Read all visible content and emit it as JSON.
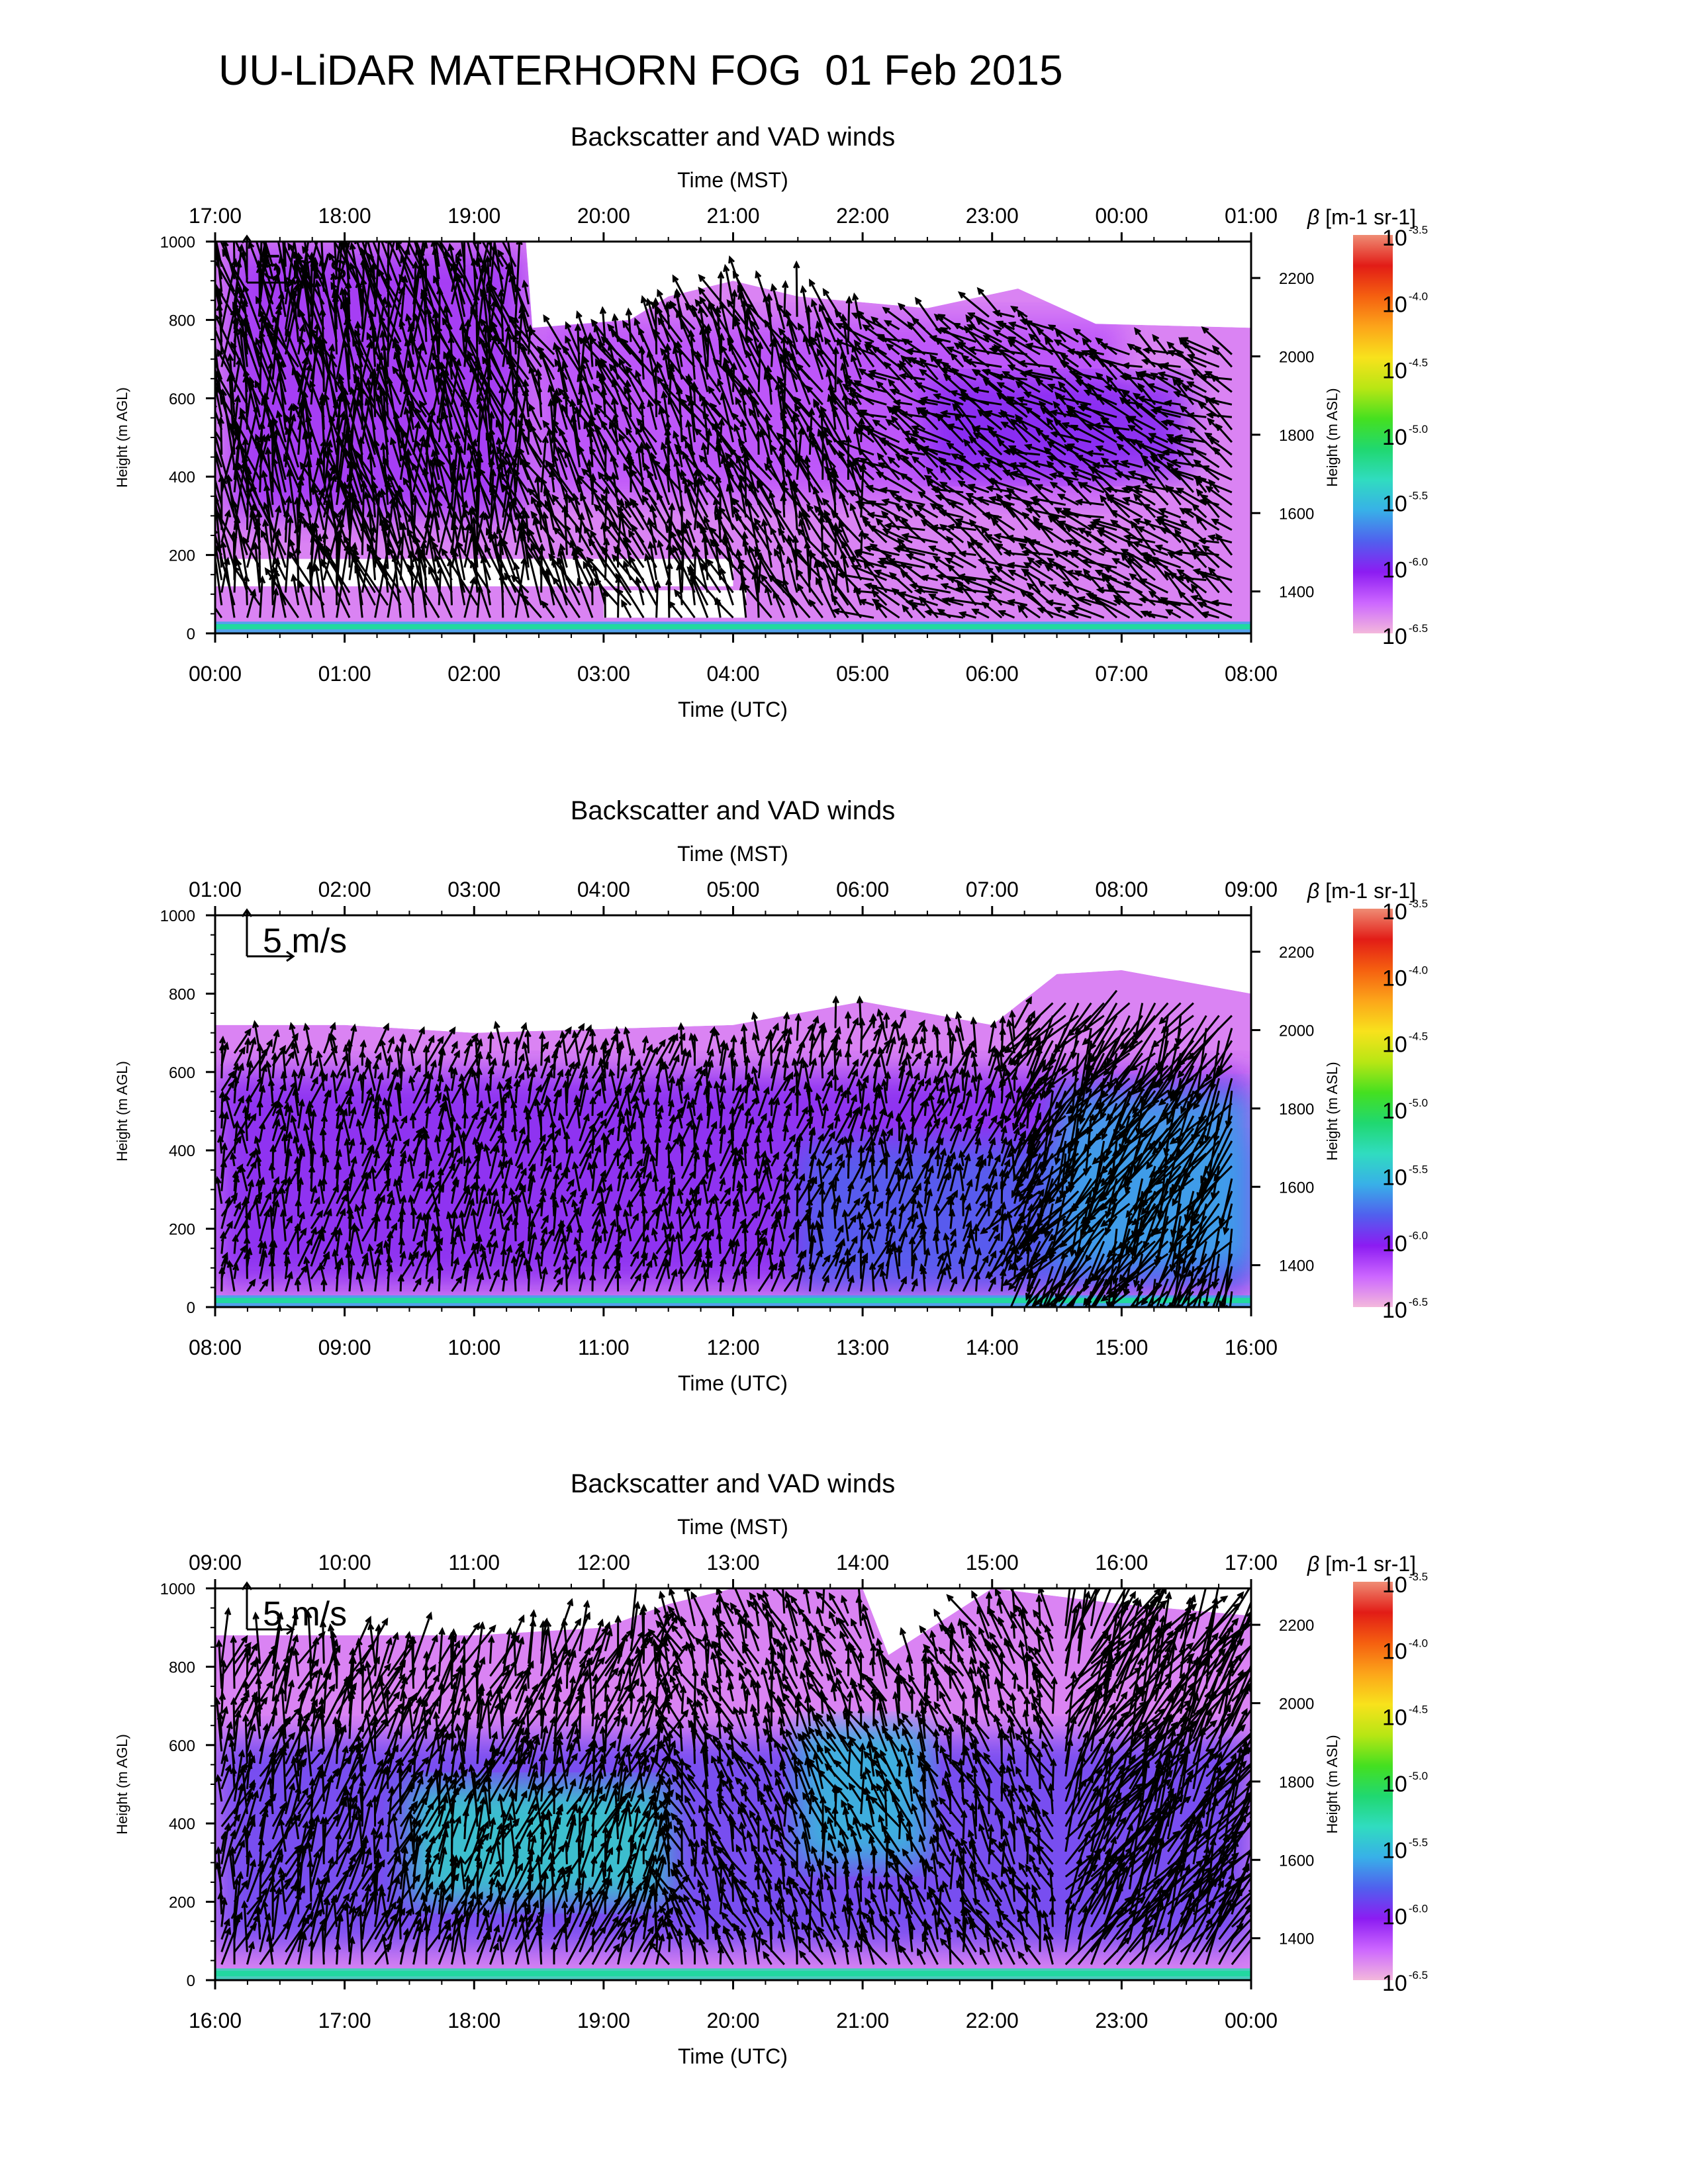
{
  "page": {
    "title": "UU-LiDAR MATERHORN FOG  01 Feb 2015"
  },
  "colorbar": {
    "label_symbol": "β",
    "label_units": "[m-1 sr-1]",
    "ticks": [
      {
        "base": "10",
        "exp": "-3.5"
      },
      {
        "base": "10",
        "exp": "-4.0"
      },
      {
        "base": "10",
        "exp": "-4.5"
      },
      {
        "base": "10",
        "exp": "-5.0"
      },
      {
        "base": "10",
        "exp": "-5.5"
      },
      {
        "base": "10",
        "exp": "-6.0"
      },
      {
        "base": "10",
        "exp": "-6.5"
      }
    ],
    "colors": [
      "#f3b8dc",
      "#cc66ff",
      "#8c1cf2",
      "#5060ee",
      "#38b0e8",
      "#30dcc0",
      "#20d870",
      "#44e020",
      "#b8e614",
      "#f8e21c",
      "#fca51a",
      "#f56010",
      "#e21c16",
      "#ef8c74"
    ],
    "scale": "log"
  },
  "chart_data": [
    {
      "type": "heatmap",
      "title": "Backscatter and VAD winds",
      "top_axis_label": "Time (MST)",
      "top_ticks": [
        "17:00",
        "18:00",
        "19:00",
        "20:00",
        "21:00",
        "22:00",
        "23:00",
        "00:00",
        "01:00"
      ],
      "xlabel": "Time (UTC)",
      "x_ticks": [
        "00:00",
        "01:00",
        "02:00",
        "03:00",
        "04:00",
        "05:00",
        "06:00",
        "07:00",
        "08:00"
      ],
      "xlim": [
        "00:00",
        "08:00"
      ],
      "ylabel": "Height (m AGL)",
      "y_ticks": [
        0,
        200,
        400,
        600,
        800,
        1000
      ],
      "ylim": [
        0,
        1000
      ],
      "right_axis_label": "Height (m ASL)",
      "right_ticks": [
        1400,
        1600,
        1800,
        2000,
        2200
      ],
      "right_axis_min": 1293,
      "reference_vector_label": "5 m/s",
      "reference_speed_ms": 5,
      "echo_top_profile": [
        {
          "t": 0.0,
          "top": 1000
        },
        {
          "t": 2.4,
          "top": 1000
        },
        {
          "t": 2.45,
          "top": 780
        },
        {
          "t": 3.2,
          "top": 800
        },
        {
          "t": 3.5,
          "top": 860
        },
        {
          "t": 4.0,
          "top": 900
        },
        {
          "t": 4.5,
          "top": 860
        },
        {
          "t": 5.5,
          "top": 830
        },
        {
          "t": 6.2,
          "top": 880
        },
        {
          "t": 6.8,
          "top": 790
        },
        {
          "t": 8.0,
          "top": 780
        }
      ],
      "backscatter_regions": [
        {
          "t0": 0.1,
          "t1": 2.4,
          "h0": 300,
          "h1": 980,
          "log_beta": -6.1
        },
        {
          "t0": 2.5,
          "t1": 7.0,
          "h0": 350,
          "h1": 800,
          "log_beta": -6.2
        },
        {
          "t0": 5.5,
          "t1": 7.5,
          "h0": 400,
          "h1": 650,
          "log_beta": -6.0
        },
        {
          "t0": 0.0,
          "t1": 8.0,
          "h0": 0,
          "h1": 30,
          "log_beta": -5.6
        }
      ],
      "gaps": [
        {
          "t0": 0.0,
          "t1": 4.0,
          "h0": 120,
          "h1": 190
        },
        {
          "t0": 3.0,
          "t1": 4.1,
          "h0": 40,
          "h1": 110
        }
      ],
      "wind_regime": [
        {
          "t0": 0.0,
          "t1": 2.4,
          "dir_deg": 350,
          "speed_ms": 6
        },
        {
          "t0": 2.4,
          "t1": 5.0,
          "dir_deg": 340,
          "speed_ms": 4
        },
        {
          "t0": 5.0,
          "t1": 8.0,
          "dir_deg": 300,
          "speed_ms": 3
        }
      ]
    },
    {
      "type": "heatmap",
      "title": "Backscatter and VAD winds",
      "top_axis_label": "Time (MST)",
      "top_ticks": [
        "01:00",
        "02:00",
        "03:00",
        "04:00",
        "05:00",
        "06:00",
        "07:00",
        "08:00",
        "09:00"
      ],
      "xlabel": "Time (UTC)",
      "x_ticks": [
        "08:00",
        "09:00",
        "10:00",
        "11:00",
        "12:00",
        "13:00",
        "14:00",
        "15:00",
        "16:00"
      ],
      "xlim": [
        "08:00",
        "16:00"
      ],
      "ylabel": "Height (m AGL)",
      "y_ticks": [
        0,
        200,
        400,
        600,
        800,
        1000
      ],
      "ylim": [
        0,
        1000
      ],
      "right_axis_label": "Height (m ASL)",
      "right_ticks": [
        1400,
        1600,
        1800,
        2000,
        2200
      ],
      "right_axis_min": 1293,
      "reference_vector_label": "5 m/s",
      "reference_speed_ms": 5,
      "echo_top_profile": [
        {
          "t": 0.0,
          "top": 720
        },
        {
          "t": 1.0,
          "top": 720
        },
        {
          "t": 2.0,
          "top": 700
        },
        {
          "t": 3.0,
          "top": 710
        },
        {
          "t": 4.0,
          "top": 720
        },
        {
          "t": 5.0,
          "top": 780
        },
        {
          "t": 6.0,
          "top": 720
        },
        {
          "t": 6.5,
          "top": 850
        },
        {
          "t": 7.0,
          "top": 860
        },
        {
          "t": 8.0,
          "top": 800
        }
      ],
      "backscatter_regions": [
        {
          "t0": 0.0,
          "t1": 8.0,
          "h0": 50,
          "h1": 600,
          "log_beta": -6.0
        },
        {
          "t0": 4.5,
          "t1": 8.0,
          "h0": 50,
          "h1": 420,
          "log_beta": -5.8
        },
        {
          "t0": 6.5,
          "t1": 8.0,
          "h0": 100,
          "h1": 550,
          "log_beta": -5.6
        },
        {
          "t0": 0.0,
          "t1": 8.0,
          "h0": 0,
          "h1": 30,
          "log_beta": -5.6
        }
      ],
      "gaps": [],
      "wind_regime": [
        {
          "t0": 0.0,
          "t1": 6.3,
          "dir_deg": 10,
          "speed_ms": 2.5
        },
        {
          "t0": 6.3,
          "t1": 8.0,
          "dir_deg": 210,
          "speed_ms": 6
        }
      ]
    },
    {
      "type": "heatmap",
      "title": "Backscatter and VAD winds",
      "top_axis_label": "Time (MST)",
      "top_ticks": [
        "09:00",
        "10:00",
        "11:00",
        "12:00",
        "13:00",
        "14:00",
        "15:00",
        "16:00",
        "17:00"
      ],
      "xlabel": "Time (UTC)",
      "x_ticks": [
        "16:00",
        "17:00",
        "18:00",
        "19:00",
        "20:00",
        "21:00",
        "22:00",
        "23:00",
        "00:00"
      ],
      "xlim": [
        "16:00",
        "00:00"
      ],
      "ylabel": "Height (m AGL)",
      "y_ticks": [
        0,
        200,
        400,
        600,
        800,
        1000
      ],
      "ylim": [
        0,
        1000
      ],
      "right_axis_label": "Height (m ASL)",
      "right_ticks": [
        1400,
        1600,
        1800,
        2000,
        2200
      ],
      "right_axis_min": 1293,
      "reference_vector_label": "5 m/s",
      "reference_speed_ms": 5,
      "echo_top_profile": [
        {
          "t": 0.0,
          "top": 880
        },
        {
          "t": 1.0,
          "top": 880
        },
        {
          "t": 2.0,
          "top": 880
        },
        {
          "t": 3.0,
          "top": 900
        },
        {
          "t": 3.5,
          "top": 960
        },
        {
          "t": 4.0,
          "top": 1000
        },
        {
          "t": 5.0,
          "top": 1000
        },
        {
          "t": 5.2,
          "top": 830
        },
        {
          "t": 6.0,
          "top": 1000
        },
        {
          "t": 7.0,
          "top": 960
        },
        {
          "t": 8.0,
          "top": 930
        }
      ],
      "backscatter_regions": [
        {
          "t0": 0.0,
          "t1": 8.0,
          "h0": 80,
          "h1": 620,
          "log_beta": -5.9
        },
        {
          "t0": 1.5,
          "t1": 3.5,
          "h0": 200,
          "h1": 500,
          "log_beta": -5.4
        },
        {
          "t0": 4.5,
          "t1": 5.5,
          "h0": 300,
          "h1": 650,
          "log_beta": -5.5
        },
        {
          "t0": 0.0,
          "t1": 8.0,
          "h0": 0,
          "h1": 30,
          "log_beta": -5.3
        }
      ],
      "gaps": [],
      "wind_regime": [
        {
          "t0": 0.0,
          "t1": 3.5,
          "dir_deg": 15,
          "speed_ms": 4
        },
        {
          "t0": 3.5,
          "t1": 6.5,
          "dir_deg": 340,
          "speed_ms": 3
        },
        {
          "t0": 6.5,
          "t1": 8.0,
          "dir_deg": 30,
          "speed_ms": 7
        }
      ]
    }
  ]
}
